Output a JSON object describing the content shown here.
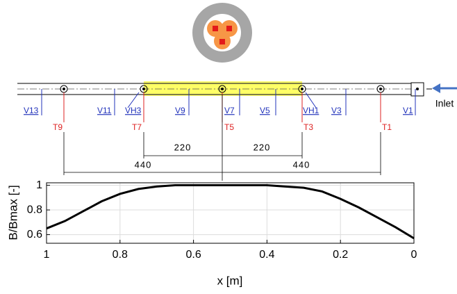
{
  "diagram": {
    "valves": [
      "V13",
      "V11",
      "VH3",
      "V9",
      "V7",
      "V5",
      "VH1",
      "V3",
      "V1"
    ],
    "thermocouples": [
      "T9",
      "T7",
      "T5",
      "T3",
      "T1"
    ],
    "dimensions": [
      "220",
      "220",
      "440",
      "440"
    ],
    "inlet": "Inlet"
  },
  "chart_data": {
    "type": "line",
    "xlabel": "x [m]",
    "ylabel": "B/Bmax [-]",
    "x": [
      1,
      0.95,
      0.9,
      0.85,
      0.8,
      0.75,
      0.7,
      0.65,
      0.6,
      0.55,
      0.5,
      0.45,
      0.4,
      0.35,
      0.3,
      0.25,
      0.2,
      0.15,
      0.1,
      0.05,
      0
    ],
    "series": [
      {
        "color": "#000000",
        "values": [
          0.65,
          0.71,
          0.79,
          0.87,
          0.93,
          0.97,
          0.99,
          1.0,
          1.0,
          1.0,
          1.0,
          1.0,
          1.0,
          0.99,
          0.98,
          0.95,
          0.89,
          0.82,
          0.74,
          0.66,
          0.57
        ]
      }
    ],
    "xlim": [
      1,
      0
    ],
    "xticks": [
      1,
      0.8,
      0.6,
      0.4,
      0.2,
      0
    ],
    "ylim": [
      0.53,
      1.02
    ],
    "yticks": [
      0.6,
      0.8,
      1
    ],
    "grid": true
  }
}
